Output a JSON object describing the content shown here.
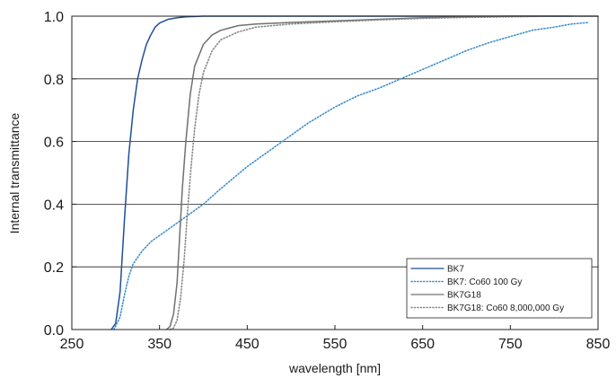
{
  "chart_data": {
    "type": "line",
    "title": "",
    "xlabel": "wavelength [nm]",
    "ylabel": "Internal transmittance",
    "xlim": [
      250,
      850
    ],
    "ylim": [
      0.0,
      1.0
    ],
    "x_ticks": [
      250,
      350,
      450,
      550,
      650,
      750,
      850
    ],
    "y_ticks": [
      0.0,
      0.2,
      0.4,
      0.6,
      0.8,
      1.0
    ],
    "x_tick_labels": [
      "250",
      "350",
      "450",
      "550",
      "650",
      "750",
      "850"
    ],
    "y_tick_labels": [
      "0.0",
      "0.2",
      "0.4",
      "0.6",
      "0.8",
      "1.0"
    ],
    "grid": "horizontal",
    "legend_position": "bottom-right",
    "series": [
      {
        "name": "BK7",
        "color": "#1f4e99",
        "style": "solid",
        "points": [
          [
            295,
            0.0
          ],
          [
            300,
            0.02
          ],
          [
            305,
            0.12
          ],
          [
            310,
            0.35
          ],
          [
            315,
            0.56
          ],
          [
            320,
            0.7
          ],
          [
            325,
            0.8
          ],
          [
            330,
            0.86
          ],
          [
            335,
            0.91
          ],
          [
            340,
            0.94
          ],
          [
            345,
            0.965
          ],
          [
            350,
            0.978
          ],
          [
            360,
            0.99
          ],
          [
            370,
            0.995
          ],
          [
            380,
            0.998
          ],
          [
            400,
            1.0
          ],
          [
            450,
            1.0
          ],
          [
            550,
            1.0
          ],
          [
            650,
            1.0
          ],
          [
            750,
            1.0
          ],
          [
            820,
            1.0
          ]
        ]
      },
      {
        "name": "BK7: Co60 100 Gy",
        "color": "#3a8fd0",
        "style": "dotted",
        "points": [
          [
            298,
            0.0
          ],
          [
            305,
            0.04
          ],
          [
            310,
            0.11
          ],
          [
            315,
            0.17
          ],
          [
            320,
            0.21
          ],
          [
            330,
            0.25
          ],
          [
            340,
            0.28
          ],
          [
            350,
            0.3
          ],
          [
            360,
            0.32
          ],
          [
            370,
            0.34
          ],
          [
            380,
            0.36
          ],
          [
            400,
            0.4
          ],
          [
            420,
            0.45
          ],
          [
            450,
            0.52
          ],
          [
            480,
            0.58
          ],
          [
            500,
            0.62
          ],
          [
            520,
            0.66
          ],
          [
            550,
            0.71
          ],
          [
            575,
            0.745
          ],
          [
            600,
            0.77
          ],
          [
            625,
            0.8
          ],
          [
            650,
            0.83
          ],
          [
            675,
            0.86
          ],
          [
            700,
            0.89
          ],
          [
            725,
            0.915
          ],
          [
            750,
            0.935
          ],
          [
            775,
            0.955
          ],
          [
            800,
            0.965
          ],
          [
            820,
            0.975
          ],
          [
            840,
            0.98
          ]
        ]
      },
      {
        "name": "BK7G18",
        "color": "#707070",
        "style": "solid",
        "points": [
          [
            358,
            0.0
          ],
          [
            362,
            0.01
          ],
          [
            366,
            0.05
          ],
          [
            370,
            0.15
          ],
          [
            373,
            0.3
          ],
          [
            376,
            0.45
          ],
          [
            380,
            0.6
          ],
          [
            385,
            0.75
          ],
          [
            390,
            0.84
          ],
          [
            400,
            0.91
          ],
          [
            410,
            0.94
          ],
          [
            420,
            0.955
          ],
          [
            440,
            0.97
          ],
          [
            460,
            0.975
          ],
          [
            500,
            0.98
          ],
          [
            550,
            0.985
          ],
          [
            600,
            0.99
          ],
          [
            650,
            0.995
          ],
          [
            700,
            0.998
          ],
          [
            750,
            1.0
          ],
          [
            800,
            1.0
          ],
          [
            850,
            1.0
          ]
        ]
      },
      {
        "name": "BK7G18: Co60 8,000,000 Gy",
        "color": "#888888",
        "style": "dotted",
        "points": [
          [
            362,
            0.0
          ],
          [
            366,
            0.005
          ],
          [
            370,
            0.03
          ],
          [
            374,
            0.1
          ],
          [
            378,
            0.22
          ],
          [
            382,
            0.38
          ],
          [
            386,
            0.52
          ],
          [
            390,
            0.64
          ],
          [
            395,
            0.75
          ],
          [
            400,
            0.82
          ],
          [
            410,
            0.89
          ],
          [
            420,
            0.925
          ],
          [
            440,
            0.95
          ],
          [
            460,
            0.965
          ],
          [
            500,
            0.975
          ],
          [
            550,
            0.982
          ],
          [
            600,
            0.988
          ],
          [
            650,
            0.993
          ],
          [
            700,
            0.996
          ],
          [
            750,
            0.998
          ],
          [
            800,
            1.0
          ],
          [
            850,
            1.0
          ]
        ]
      }
    ]
  }
}
